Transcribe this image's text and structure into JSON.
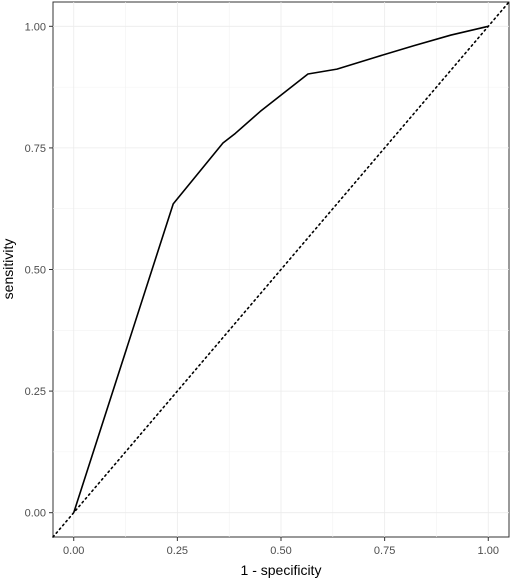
{
  "chart_data": {
    "type": "line",
    "xlabel": "1 - specificity",
    "ylabel": "sensitivity",
    "xlim": [
      -0.05,
      1.05
    ],
    "ylim": [
      -0.05,
      1.05
    ],
    "x_ticks": [
      "0.00",
      "0.25",
      "0.50",
      "0.75",
      "1.00"
    ],
    "y_ticks": [
      "0.00",
      "0.25",
      "0.50",
      "0.75",
      "1.00"
    ],
    "grid": true,
    "series": [
      {
        "style": "solid",
        "color": "#000000",
        "x": [
          0.0,
          0.24,
          0.36,
          0.39,
          0.45,
          0.565,
          0.635,
          0.73,
          0.82,
          0.91,
          1.0
        ],
        "y": [
          0.0,
          0.635,
          0.76,
          0.78,
          0.825,
          0.902,
          0.912,
          0.937,
          0.96,
          0.982,
          1.0
        ]
      },
      {
        "style": "dotted",
        "color": "#000000",
        "x": [
          -0.05,
          1.05
        ],
        "y": [
          -0.05,
          1.05
        ]
      }
    ]
  }
}
